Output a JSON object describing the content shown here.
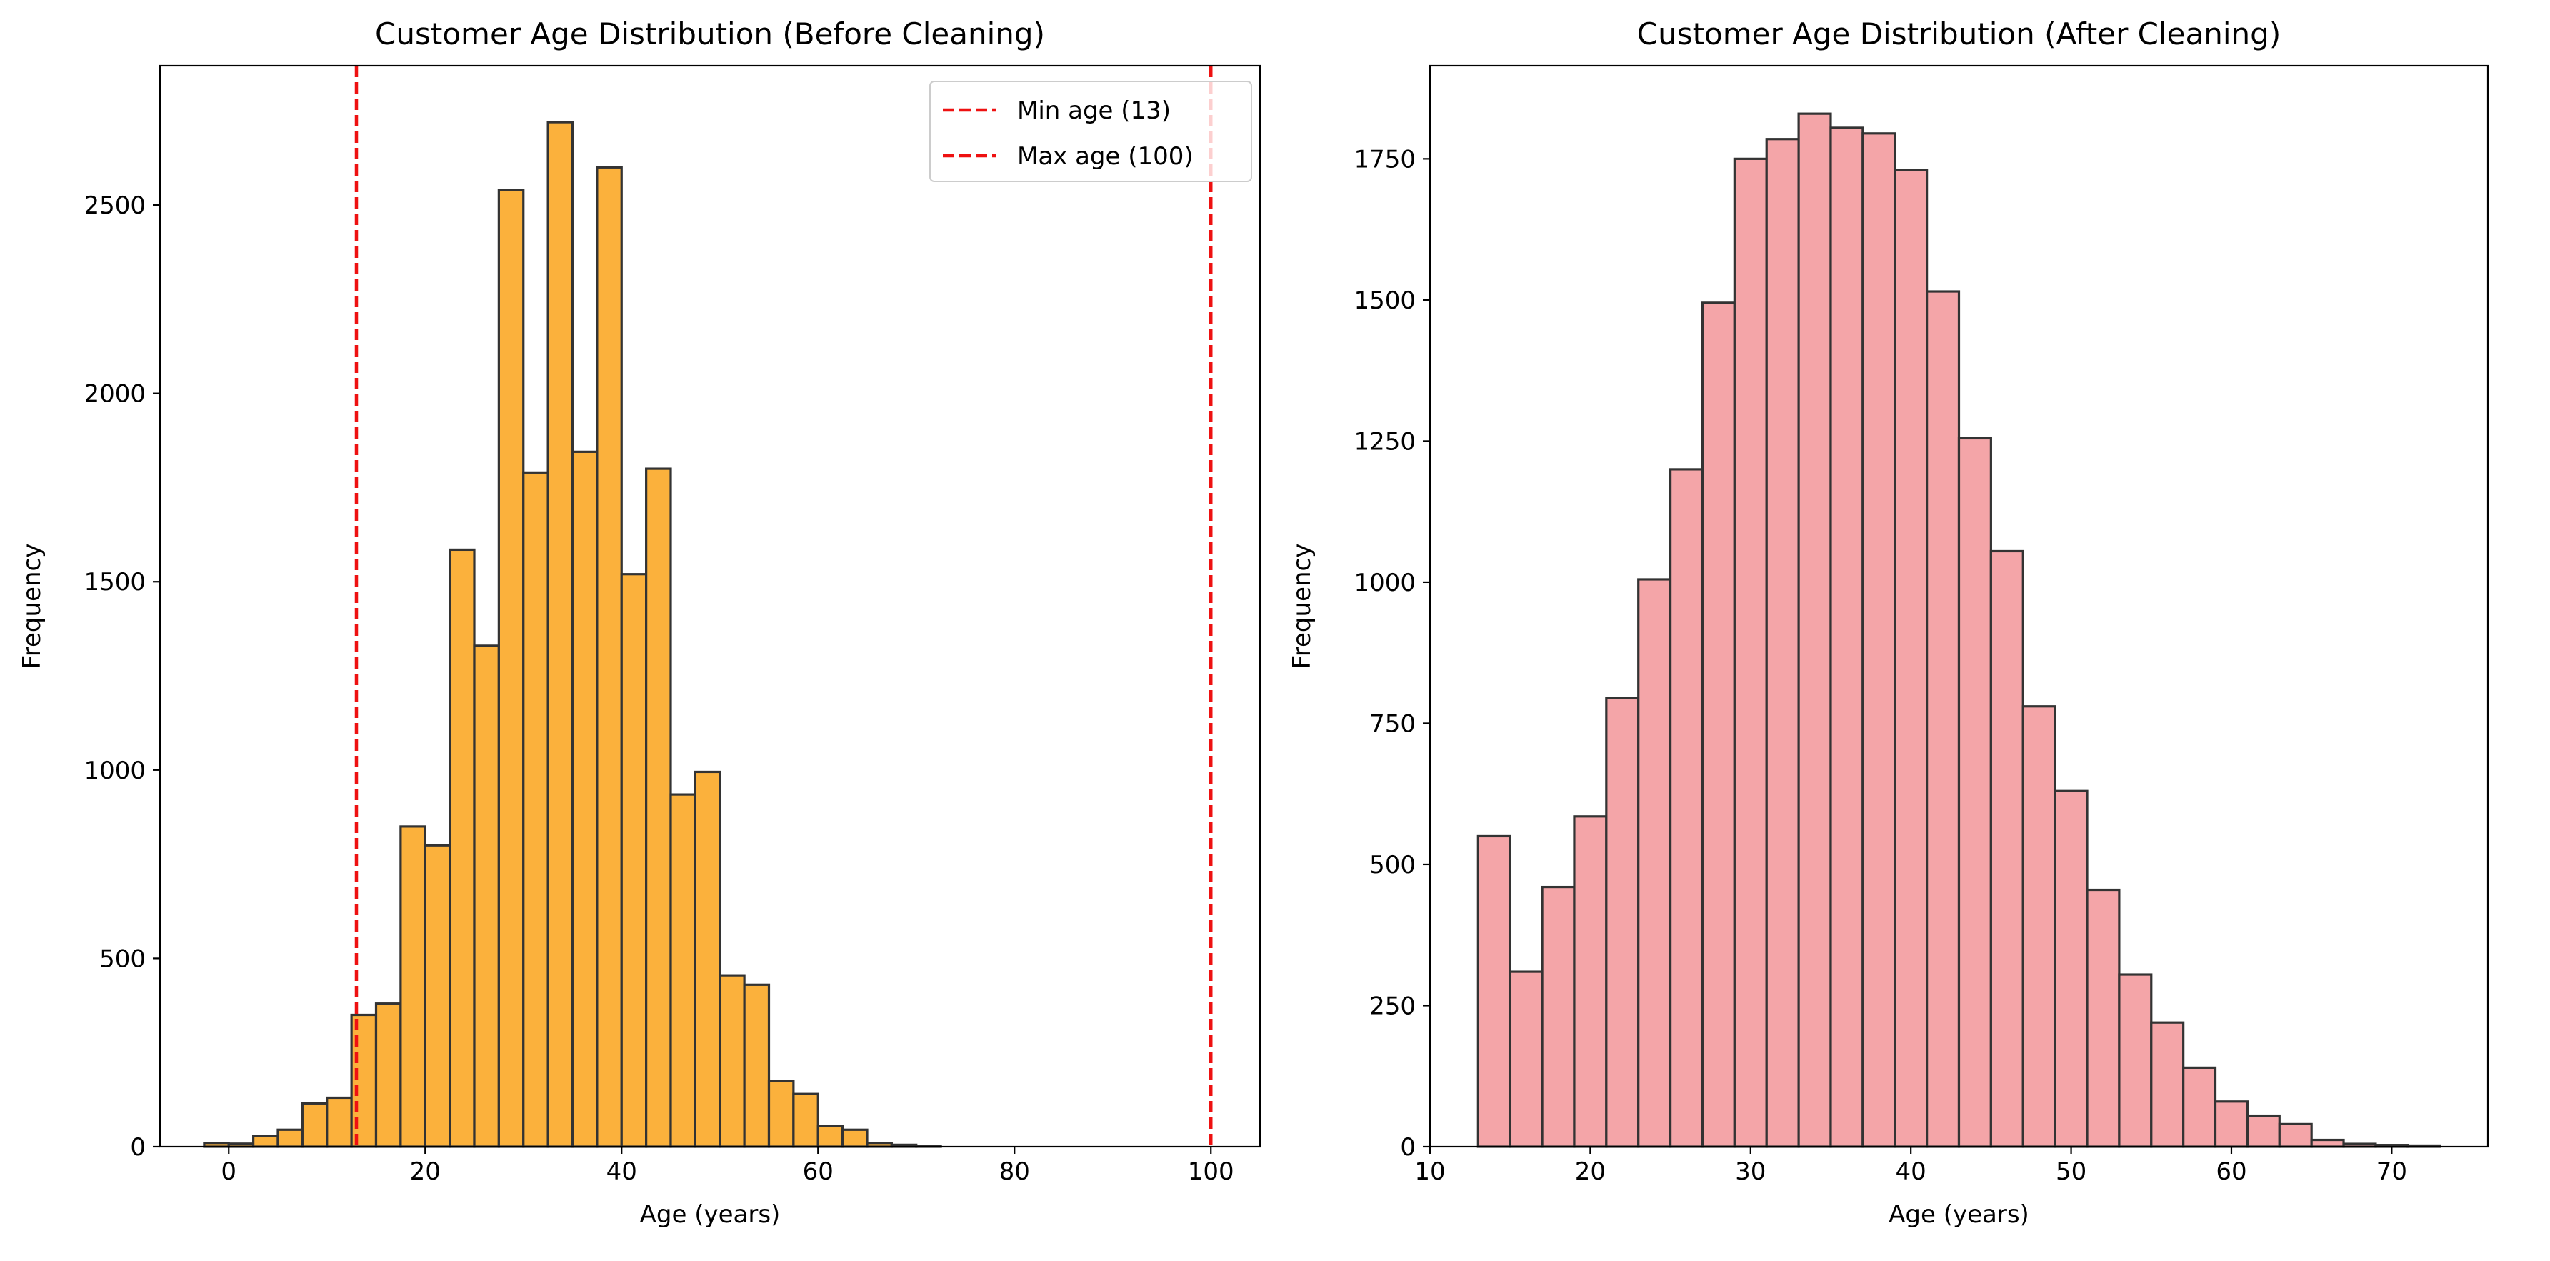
{
  "colors": {
    "left_bar": "#FBB13C",
    "right_bar": "#F4A5A8",
    "bar_edge": "#333333",
    "threshold_line": "#EE1111"
  },
  "chart_data": [
    {
      "type": "bar",
      "title": "Customer Age Distribution (Before Cleaning)",
      "xlabel": "Age (years)",
      "ylabel": "Frequency",
      "xlim": [
        -7.0,
        105.0
      ],
      "ylim": [
        0,
        2870
      ],
      "xticks": [
        0,
        20,
        40,
        60,
        80,
        100
      ],
      "yticks": [
        0,
        500,
        1000,
        1500,
        2000,
        2500
      ],
      "bin_start": -2.5,
      "bin_width": 2.5,
      "values": [
        10,
        8,
        28,
        45,
        115,
        130,
        350,
        380,
        850,
        800,
        1585,
        1330,
        2540,
        1790,
        2720,
        1845,
        2600,
        1520,
        1800,
        935,
        995,
        455,
        430,
        175,
        140,
        55,
        45,
        10,
        5,
        2
      ],
      "vlines": [
        {
          "x": 13,
          "label": "Min age (13)"
        },
        {
          "x": 100,
          "label": "Max age (100)"
        }
      ],
      "legend_position": "upper right"
    },
    {
      "type": "bar",
      "title": "Customer Age Distribution (After Cleaning)",
      "xlabel": "Age (years)",
      "ylabel": "Frequency",
      "xlim": [
        10,
        76.0
      ],
      "ylim": [
        0,
        1915
      ],
      "xticks": [
        10,
        20,
        30,
        40,
        50,
        60,
        70
      ],
      "yticks": [
        0,
        250,
        500,
        750,
        1000,
        1250,
        1500,
        1750
      ],
      "bin_start": 13,
      "bin_width": 2,
      "values": [
        550,
        310,
        460,
        585,
        795,
        1005,
        1200,
        1495,
        1750,
        1785,
        1830,
        1805,
        1795,
        1730,
        1515,
        1255,
        1055,
        780,
        630,
        455,
        305,
        220,
        140,
        80,
        55,
        40,
        12,
        5,
        3,
        2
      ],
      "legend_position": "none"
    }
  ]
}
